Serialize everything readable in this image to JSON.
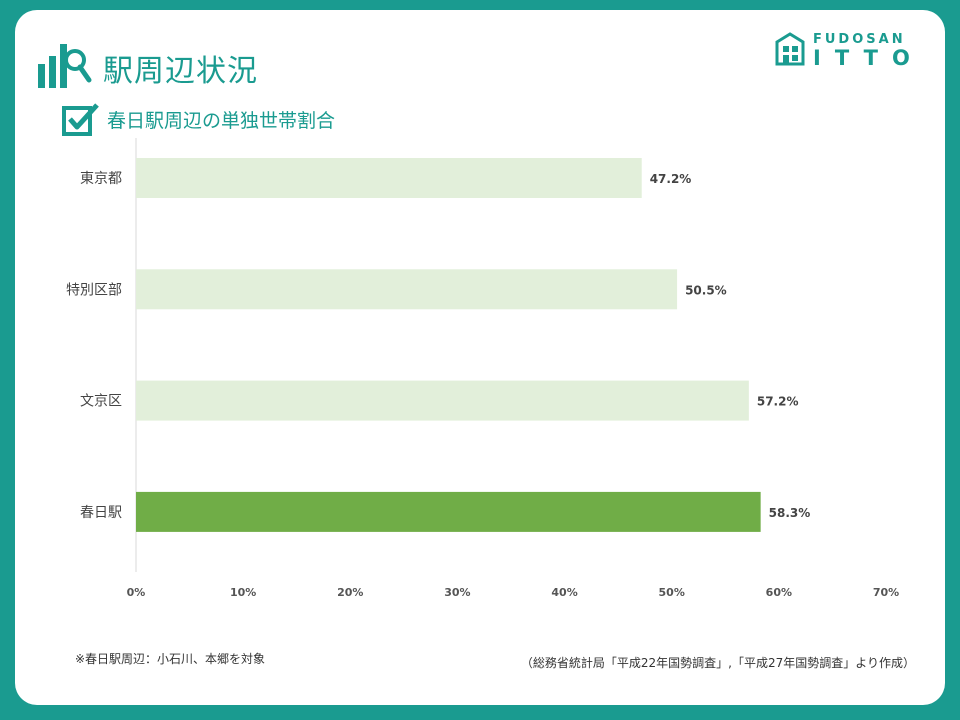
{
  "header": {
    "title": "駅周辺状況",
    "subtitle": "春日駅周辺の単独世帯割合",
    "icon": "bar-chart-magnifier-icon",
    "subtitle_icon": "checkbox-icon"
  },
  "logo": {
    "line1": "FUDOSAN",
    "line2": "ITTO",
    "icon": "building-logo-icon"
  },
  "colors": {
    "background": "#1a9b90",
    "bar_default": "#e2efda",
    "bar_highlight": "#70ad47",
    "accent": "#1a9b90"
  },
  "chart_data": {
    "type": "bar",
    "orientation": "horizontal",
    "categories": [
      "東京都",
      "特別区部",
      "文京区",
      "春日駅"
    ],
    "values": [
      47.2,
      50.5,
      57.2,
      58.3
    ],
    "value_labels": [
      "47.2%",
      "50.5%",
      "57.2%",
      "58.3%"
    ],
    "highlight_category": "春日駅",
    "xlim": [
      0,
      70
    ],
    "xticks": [
      0,
      10,
      20,
      30,
      40,
      50,
      60,
      70
    ],
    "xtick_labels": [
      "0%",
      "10%",
      "20%",
      "30%",
      "40%",
      "50%",
      "60%",
      "70%"
    ],
    "grid": false,
    "title": "",
    "xlabel": "",
    "ylabel": ""
  },
  "footer": {
    "note": "※春日駅周辺：小石川、本郷を対象",
    "source": "（総務省統計局「平成22年国勢調査」,「平成27年国勢調査」より作成）"
  }
}
